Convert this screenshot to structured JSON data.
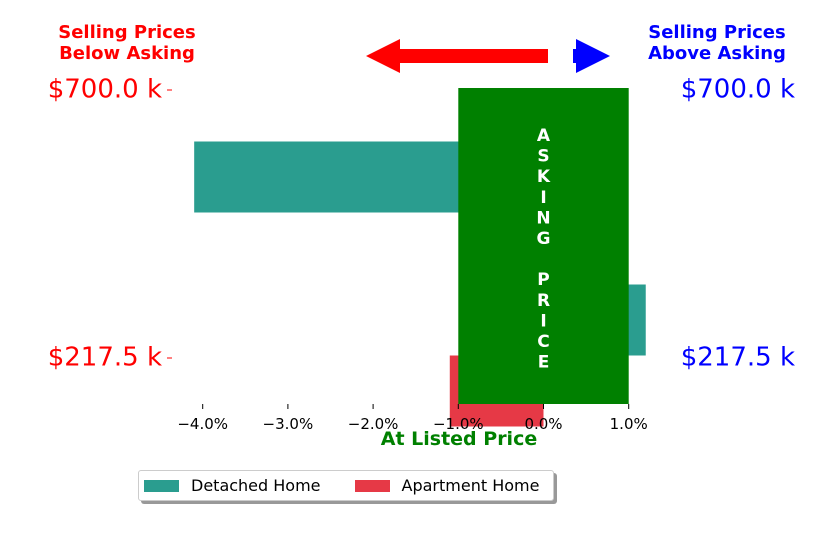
{
  "colors": {
    "detached": "#2a9d8f",
    "apartment": "#e63946",
    "asking_band": "#008000",
    "below": "#ff0000",
    "above": "#0000ff"
  },
  "header": {
    "below_label": [
      "Selling Prices",
      "Below Asking"
    ],
    "above_label": [
      "Selling Prices",
      "Above Asking"
    ]
  },
  "asking_band_text": "ASKING PRICE",
  "chart_data": {
    "type": "bar",
    "orientation": "horizontal",
    "categories": [
      "$700.0 k",
      "$217.5 k"
    ],
    "series": [
      {
        "name": "Detached Home",
        "values": [
          -4.1,
          1.2
        ]
      },
      {
        "name": "Apartment Home",
        "values": [
          null,
          -1.1
        ]
      }
    ],
    "asking_band_range": [
      -1.0,
      1.0
    ],
    "xlabel": "At Listed Price",
    "xticks": [
      -4.0,
      -3.0,
      -2.0,
      -1.0,
      0.0,
      1.0
    ],
    "xtick_labels": [
      "−4.0%",
      "−3.0%",
      "−2.0%",
      "−1.0%",
      "0.0%",
      "1.0%"
    ],
    "xlim": [
      -4.3,
      1.2
    ],
    "left_labels": [
      "$700.0 k",
      "$217.5 k"
    ],
    "right_labels": [
      "$700.0 k",
      "$217.5 k"
    ],
    "legend_position": "bottom",
    "grid": false
  }
}
